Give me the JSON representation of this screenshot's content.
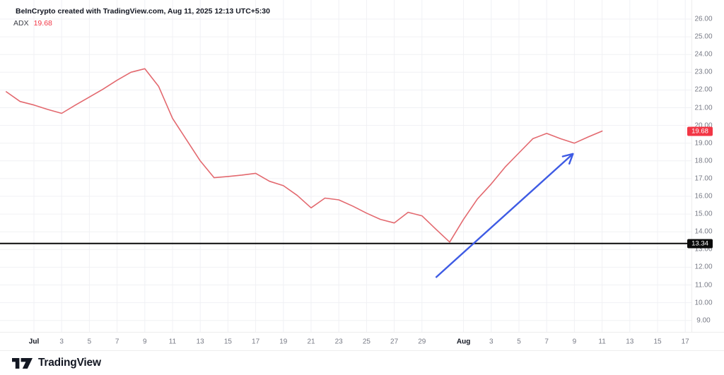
{
  "header": {
    "attribution": "BeInCrypto created with TradingView.com, Aug 11, 2025 12:13 UTC+5:30"
  },
  "legend": {
    "indicator": "ADX",
    "value": "19.68",
    "value_color": "#f23645"
  },
  "footer": {
    "brand": "TradingView"
  },
  "chart_data": {
    "type": "line",
    "title": "ADX (Average Directional Index) daily line with reference level and trend arrow",
    "grid": true,
    "grid_color": "#f0f1f4",
    "legend_position": "top-left",
    "series": [
      {
        "name": "ADX",
        "color": "#e3696f",
        "dates": [
          "Jun 29",
          "Jun 30",
          "Jul 1",
          "Jul 2",
          "Jul 3",
          "Jul 4",
          "Jul 5",
          "Jul 6",
          "Jul 7",
          "Jul 8",
          "Jul 9",
          "Jul 10",
          "Jul 11",
          "Jul 12",
          "Jul 13",
          "Jul 14",
          "Jul 15",
          "Jul 16",
          "Jul 17",
          "Jul 18",
          "Jul 19",
          "Jul 20",
          "Jul 21",
          "Jul 22",
          "Jul 23",
          "Jul 24",
          "Jul 25",
          "Jul 26",
          "Jul 27",
          "Jul 28",
          "Jul 29",
          "Jul 30",
          "Jul 31",
          "Aug 1",
          "Aug 2",
          "Aug 3",
          "Aug 4",
          "Aug 5",
          "Aug 6",
          "Aug 7",
          "Aug 8",
          "Aug 9",
          "Aug 10",
          "Aug 11"
        ],
        "values": [
          21.9,
          21.35,
          21.15,
          20.9,
          20.68,
          21.15,
          21.6,
          22.05,
          22.55,
          23.0,
          23.2,
          22.2,
          20.4,
          19.2,
          18.0,
          17.05,
          17.12,
          17.2,
          17.3,
          16.85,
          16.6,
          16.05,
          15.35,
          15.9,
          15.8,
          15.45,
          15.05,
          14.7,
          14.5,
          15.1,
          14.9,
          14.15,
          13.42,
          14.7,
          15.85,
          16.7,
          17.65,
          18.45,
          19.25,
          19.55,
          19.25,
          19.0,
          19.35,
          19.68
        ]
      }
    ],
    "y_axis": {
      "min": 9,
      "max": 26,
      "step": 1,
      "labels": [
        "26.00",
        "25.00",
        "24.00",
        "23.00",
        "22.00",
        "21.00",
        "20.00",
        "19.00",
        "18.00",
        "17.00",
        "16.00",
        "15.00",
        "14.00",
        "13.00",
        "12.00",
        "11.00",
        "10.00",
        "9.00"
      ]
    },
    "x_axis": {
      "ticks": [
        {
          "label": "Jul",
          "day_index": 2,
          "bold": true
        },
        {
          "label": "3",
          "day_index": 4
        },
        {
          "label": "5",
          "day_index": 6
        },
        {
          "label": "7",
          "day_index": 8
        },
        {
          "label": "9",
          "day_index": 10
        },
        {
          "label": "11",
          "day_index": 12
        },
        {
          "label": "13",
          "day_index": 14
        },
        {
          "label": "15",
          "day_index": 16
        },
        {
          "label": "17",
          "day_index": 18
        },
        {
          "label": "19",
          "day_index": 20
        },
        {
          "label": "21",
          "day_index": 22
        },
        {
          "label": "23",
          "day_index": 24
        },
        {
          "label": "25",
          "day_index": 26
        },
        {
          "label": "27",
          "day_index": 28
        },
        {
          "label": "29",
          "day_index": 30
        },
        {
          "label": "Aug",
          "day_index": 33,
          "bold": true
        },
        {
          "label": "3",
          "day_index": 35
        },
        {
          "label": "5",
          "day_index": 37
        },
        {
          "label": "7",
          "day_index": 39
        },
        {
          "label": "9",
          "day_index": 41
        },
        {
          "label": "11",
          "day_index": 43
        },
        {
          "label": "13",
          "day_index": 45
        },
        {
          "label": "15",
          "day_index": 47
        },
        {
          "label": "17",
          "day_index": 49
        }
      ]
    },
    "reference_line": {
      "value": 13.34,
      "label": "13.34",
      "color": "#0a0a0a"
    },
    "last_value_badge": {
      "value": 19.68,
      "label": "19.68",
      "color": "#f23645"
    },
    "arrow_annotation": {
      "color": "#3e5be4",
      "from": {
        "date": "Jul 30",
        "day_index": 31,
        "value": 11.42
      },
      "to": {
        "date": "Aug 9",
        "day_index": 40.9,
        "value": 18.4
      }
    }
  }
}
